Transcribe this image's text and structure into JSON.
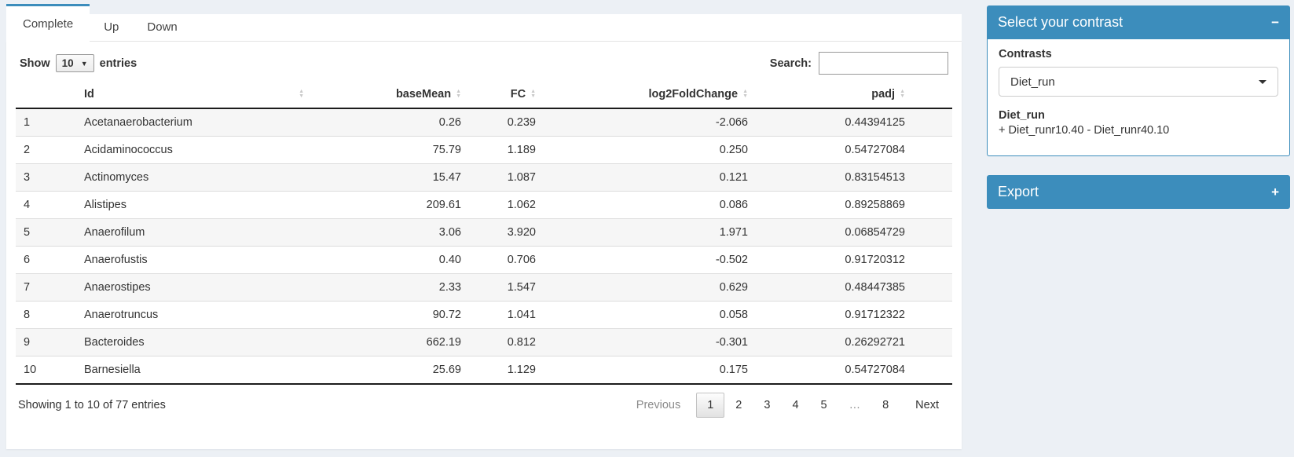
{
  "tabs": [
    {
      "label": "Complete",
      "active": true
    },
    {
      "label": "Up",
      "active": false
    },
    {
      "label": "Down",
      "active": false
    }
  ],
  "length_control": {
    "prefix": "Show",
    "value": "10",
    "suffix": "entries"
  },
  "search": {
    "label": "Search:",
    "value": ""
  },
  "table": {
    "columns": [
      "",
      "Id",
      "baseMean",
      "FC",
      "log2FoldChange",
      "padj"
    ],
    "rows": [
      [
        "1",
        "Acetanaerobacterium",
        "0.26",
        "0.239",
        "-2.066",
        "0.44394125"
      ],
      [
        "2",
        "Acidaminococcus",
        "75.79",
        "1.189",
        "0.250",
        "0.54727084"
      ],
      [
        "3",
        "Actinomyces",
        "15.47",
        "1.087",
        "0.121",
        "0.83154513"
      ],
      [
        "4",
        "Alistipes",
        "209.61",
        "1.062",
        "0.086",
        "0.89258869"
      ],
      [
        "5",
        "Anaerofilum",
        "3.06",
        "3.920",
        "1.971",
        "0.06854729"
      ],
      [
        "6",
        "Anaerofustis",
        "0.40",
        "0.706",
        "-0.502",
        "0.91720312"
      ],
      [
        "7",
        "Anaerostipes",
        "2.33",
        "1.547",
        "0.629",
        "0.48447385"
      ],
      [
        "8",
        "Anaerotruncus",
        "90.72",
        "1.041",
        "0.058",
        "0.91712322"
      ],
      [
        "9",
        "Bacteroides",
        "662.19",
        "0.812",
        "-0.301",
        "0.26292721"
      ],
      [
        "10",
        "Barnesiella",
        "25.69",
        "1.129",
        "0.175",
        "0.54727084"
      ]
    ]
  },
  "info": "Showing 1 to 10 of 77 entries",
  "pagination": {
    "previous": "Previous",
    "pages": [
      "1",
      "2",
      "3",
      "4",
      "5",
      "…",
      "8"
    ],
    "current": "1",
    "next": "Next"
  },
  "contrast_panel": {
    "title": "Select your contrast",
    "collapse_icon": "−",
    "contrasts_label": "Contrasts",
    "selected_contrast": "Diet_run",
    "contrast_name": "Diet_run",
    "contrast_formula": "+ Diet_runr10.40 - Diet_runr40.10"
  },
  "export_panel": {
    "title": "Export",
    "expand_icon": "+"
  },
  "colors": {
    "accent": "#3c8dbc",
    "page_bg": "#ecf0f5"
  }
}
